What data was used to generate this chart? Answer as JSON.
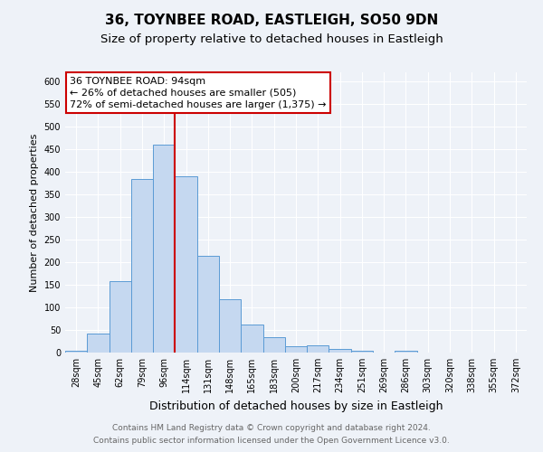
{
  "title": "36, TOYNBEE ROAD, EASTLEIGH, SO50 9DN",
  "subtitle": "Size of property relative to detached houses in Eastleigh",
  "xlabel": "Distribution of detached houses by size in Eastleigh",
  "ylabel": "Number of detached properties",
  "bar_labels": [
    "28sqm",
    "45sqm",
    "62sqm",
    "79sqm",
    "96sqm",
    "114sqm",
    "131sqm",
    "148sqm",
    "165sqm",
    "183sqm",
    "200sqm",
    "217sqm",
    "234sqm",
    "251sqm",
    "269sqm",
    "286sqm",
    "303sqm",
    "320sqm",
    "338sqm",
    "355sqm",
    "372sqm"
  ],
  "bar_values": [
    5,
    42,
    158,
    385,
    460,
    390,
    215,
    118,
    62,
    35,
    15,
    17,
    8,
    4,
    0,
    5,
    0,
    0,
    0,
    0,
    0
  ],
  "bar_color": "#c5d8f0",
  "bar_edge_color": "#5b9bd5",
  "vline_x_index": 4,
  "vline_color": "#cc0000",
  "ylim": [
    0,
    620
  ],
  "yticks": [
    0,
    50,
    100,
    150,
    200,
    250,
    300,
    350,
    400,
    450,
    500,
    550,
    600
  ],
  "annotation_title": "36 TOYNBEE ROAD: 94sqm",
  "annotation_line1": "← 26% of detached houses are smaller (505)",
  "annotation_line2": "72% of semi-detached houses are larger (1,375) →",
  "annotation_box_facecolor": "#ffffff",
  "annotation_box_edgecolor": "#cc0000",
  "footer1": "Contains HM Land Registry data © Crown copyright and database right 2024.",
  "footer2": "Contains public sector information licensed under the Open Government Licence v3.0.",
  "background_color": "#eef2f8",
  "grid_color": "#ffffff",
  "title_fontsize": 11,
  "subtitle_fontsize": 9.5,
  "xlabel_fontsize": 9,
  "ylabel_fontsize": 8,
  "tick_fontsize": 7,
  "annotation_fontsize": 8,
  "footer_fontsize": 6.5
}
